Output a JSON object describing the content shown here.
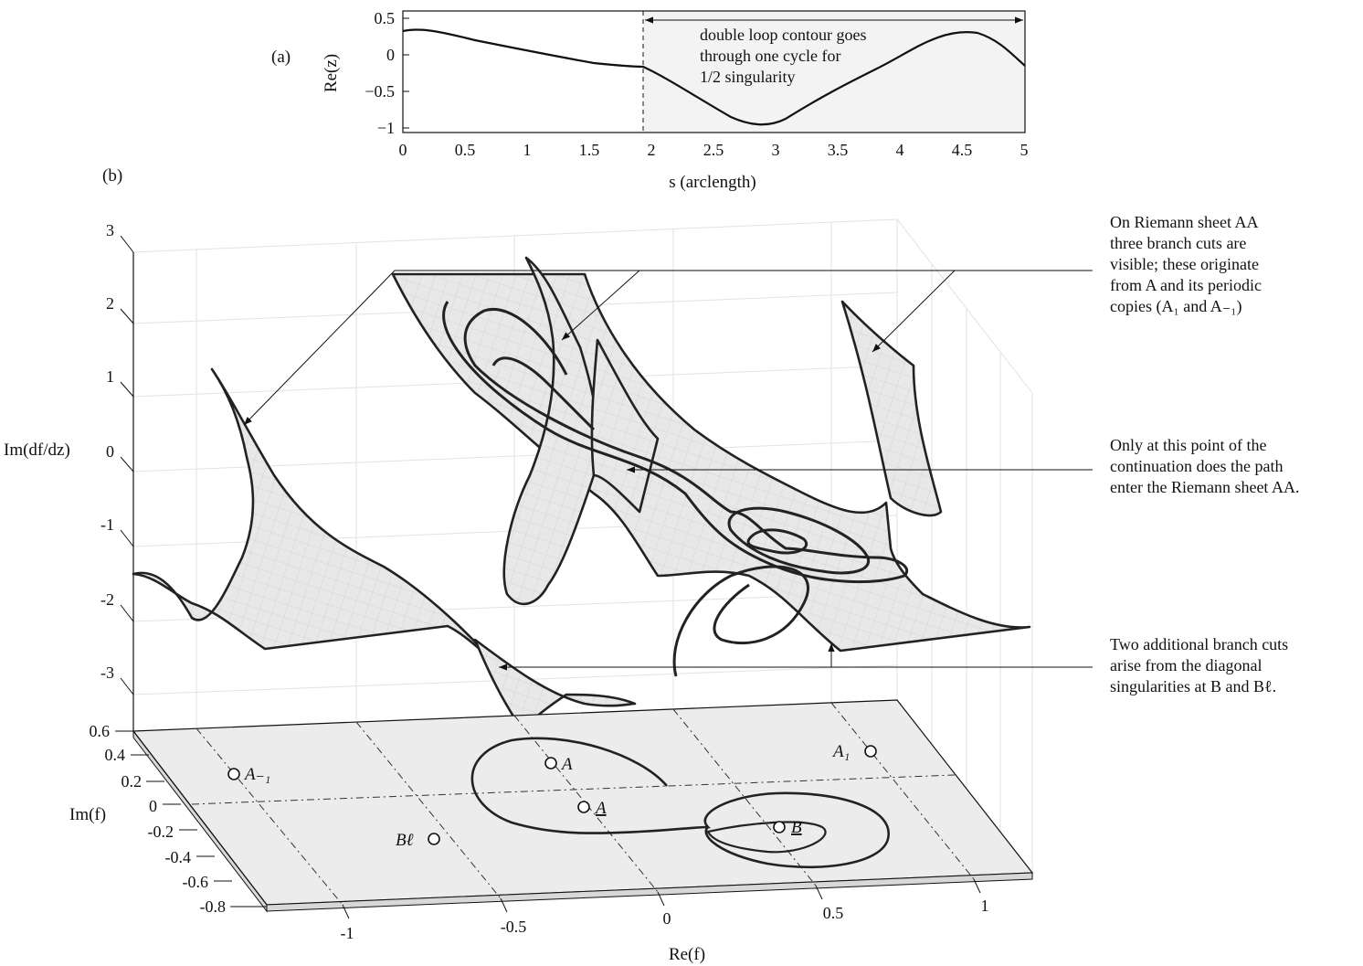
{
  "panel_a": {
    "label": "(a)",
    "ylabel": "Re(z)",
    "xlabel": "s (arclength)",
    "yticks": [
      "0.5",
      "0",
      "−0.5",
      "−1"
    ],
    "xticks": [
      "0",
      "0.5",
      "1",
      "1.5",
      "2",
      "2.5",
      "3",
      "3.5",
      "4",
      "4.5",
      "5"
    ],
    "annotation": [
      "double loop contour goes",
      "through one cycle for",
      "1/2 singularity"
    ]
  },
  "panel_b": {
    "label": "(b)",
    "zlabel": "Im(df/dz)",
    "ylabel": "Im(f)",
    "xlabel": "Re(f)",
    "zticks": [
      "3",
      "2",
      "1",
      "0",
      "-1",
      "-2",
      "-3"
    ],
    "yticks": [
      "0.6",
      "0.4",
      "0.2",
      "0",
      "-0.2",
      "-0.4",
      "-0.6",
      "-0.8"
    ],
    "xticks": [
      "-1",
      "-0.5",
      "0",
      "0.5",
      "1"
    ],
    "points": {
      "A_minus1": "A₋₁",
      "A": "A",
      "A_under": "A",
      "B_ell": "Bℓ",
      "B_under": "B",
      "A_1": "A₁"
    },
    "annotations": {
      "top": [
        "On Riemann sheet AA",
        "three branch cuts are",
        "visible; these originate",
        "from A and its periodic",
        "copies (A₁ and A₋₁)"
      ],
      "middle": [
        "Only at this point of the",
        "continuation does the path",
        "enter the Riemann sheet AA."
      ],
      "bottom": [
        "Two additional branch cuts",
        "arise from the diagonal",
        "singularities at B and Bℓ."
      ]
    }
  }
}
